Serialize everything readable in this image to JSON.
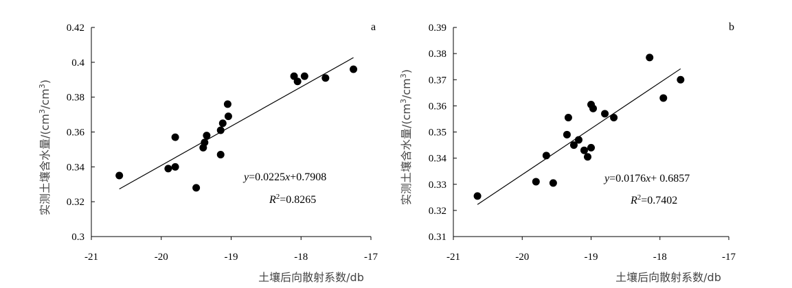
{
  "chart_data": [
    {
      "type": "scatter",
      "panel_label": "a",
      "xlabel": "土壤后向散射系数/db",
      "ylabel_main": "实测土壤含水量/(cm",
      "ylabel_sup1": "3",
      "ylabel_mid": "/cm",
      "ylabel_sup2": "3",
      "ylabel_end": ")",
      "xlim": [
        -21,
        -17
      ],
      "ylim": [
        0.3,
        0.42
      ],
      "xticks": [
        -21,
        -20,
        -19,
        -18,
        -17
      ],
      "xtick_labels": [
        "-21",
        "-20",
        "-19",
        "-18",
        "-17"
      ],
      "yticks": [
        0.3,
        0.32,
        0.34,
        0.36,
        0.38,
        0.4,
        0.42
      ],
      "ytick_labels": [
        "0.3",
        "0.32",
        "0.34",
        "0.36",
        "0.38",
        "0.4",
        "0.42"
      ],
      "points": [
        [
          -20.6,
          0.335
        ],
        [
          -19.9,
          0.339
        ],
        [
          -19.8,
          0.34
        ],
        [
          -19.8,
          0.357
        ],
        [
          -19.5,
          0.328
        ],
        [
          -19.4,
          0.351
        ],
        [
          -19.38,
          0.354
        ],
        [
          -19.35,
          0.358
        ],
        [
          -19.15,
          0.361
        ],
        [
          -19.15,
          0.347
        ],
        [
          -19.12,
          0.365
        ],
        [
          -19.05,
          0.376
        ],
        [
          -19.04,
          0.369
        ],
        [
          -18.1,
          0.392
        ],
        [
          -18.05,
          0.389
        ],
        [
          -17.95,
          0.392
        ],
        [
          -17.65,
          0.391
        ],
        [
          -17.25,
          0.396
        ]
      ],
      "fit": {
        "slope": 0.0225,
        "intercept": 0.7908,
        "x_range": [
          -20.6,
          -17.25
        ]
      },
      "equation": {
        "y": "y",
        "eq_mid": "=0.0225",
        "x": "x",
        "eq_end": "+0.7908",
        "r": "R",
        "r_sup": "2",
        "r_val": "=0.8265"
      }
    },
    {
      "type": "scatter",
      "panel_label": "b",
      "xlabel": "土壤后向散射系数/db",
      "ylabel_main": "实测土壤含水量/(cm",
      "ylabel_sup1": "3",
      "ylabel_mid": "/cm",
      "ylabel_sup2": "3",
      "ylabel_end": ")",
      "xlim": [
        -21,
        -17
      ],
      "ylim": [
        0.31,
        0.39
      ],
      "xticks": [
        -21,
        -20,
        -19,
        -18,
        -17
      ],
      "xtick_labels": [
        "-21",
        "-20",
        "-19",
        "-18",
        "-17"
      ],
      "yticks": [
        0.31,
        0.32,
        0.33,
        0.34,
        0.35,
        0.36,
        0.37,
        0.38,
        0.39
      ],
      "ytick_labels": [
        "0.31",
        "0.32",
        "0.33",
        "0.34",
        "0.35",
        "0.36",
        "0.37",
        "0.38",
        "0.39"
      ],
      "points": [
        [
          -20.65,
          0.3255
        ],
        [
          -19.8,
          0.331
        ],
        [
          -19.65,
          0.341
        ],
        [
          -19.55,
          0.3305
        ],
        [
          -19.35,
          0.349
        ],
        [
          -19.33,
          0.3555
        ],
        [
          -19.25,
          0.345
        ],
        [
          -19.18,
          0.347
        ],
        [
          -19.1,
          0.343
        ],
        [
          -19.05,
          0.3405
        ],
        [
          -19.0,
          0.3605
        ],
        [
          -19.0,
          0.344
        ],
        [
          -18.97,
          0.359
        ],
        [
          -18.8,
          0.357
        ],
        [
          -18.67,
          0.3555
        ],
        [
          -18.15,
          0.3785
        ],
        [
          -17.95,
          0.363
        ],
        [
          -17.7,
          0.37
        ]
      ],
      "fit": {
        "slope": 0.0176,
        "intercept": 0.6857,
        "x_range": [
          -20.65,
          -17.7
        ]
      },
      "equation": {
        "y": "y",
        "eq_mid": "=0.0176",
        "x": "x",
        "eq_end": "+ 0.6857",
        "r": "R",
        "r_sup": "2",
        "r_val": "=0.7402"
      }
    }
  ]
}
